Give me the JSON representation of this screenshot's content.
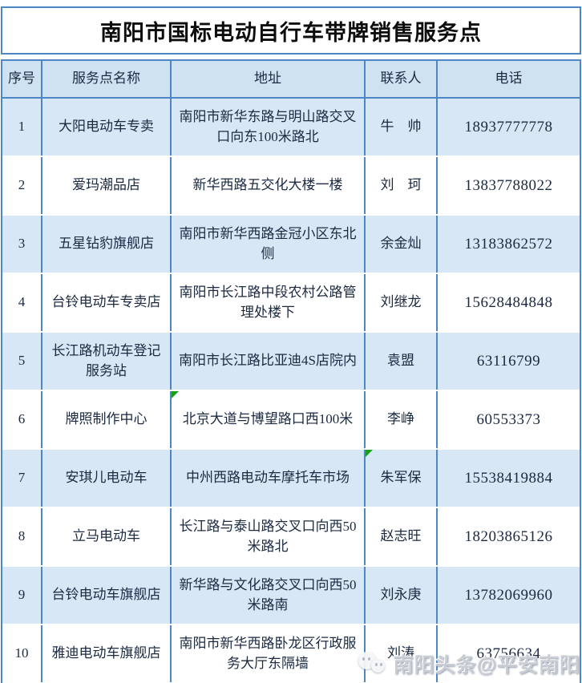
{
  "title": "南阳市国标电动自行车带牌销售服务点",
  "colors": {
    "border_blue": "#4d86c4",
    "header_bg": "#cfe2f2",
    "alt_row_bg": "#d7e7f6",
    "text": "#1b2a41",
    "marker_green": "#18a018",
    "watermark_gray": "#c9cdd4"
  },
  "table": {
    "headers": [
      "序号",
      "服务点名称",
      "地址",
      "联系人",
      "电话"
    ],
    "rows": [
      {
        "no": "1",
        "name": "大阳电动车专卖",
        "address": "南阳市新华东路与明山路交叉口向东100米路北",
        "contact": "牛　帅",
        "phone": "18937777778"
      },
      {
        "no": "2",
        "name": "爱玛潮品店",
        "address": "新华西路五交化大楼一楼",
        "contact": "刘　珂",
        "phone": "13837788022"
      },
      {
        "no": "3",
        "name": "五星钻豹旗舰店",
        "address": "南阳市新华西路金冠小区东北侧",
        "contact": "余金灿",
        "phone": "13183862572"
      },
      {
        "no": "4",
        "name": "台铃电动车专卖店",
        "address": "南阳市长江路中段农村公路管理处楼下",
        "contact": "刘继龙",
        "phone": "15628484848"
      },
      {
        "no": "5",
        "name": "长江路机动车登记服务站",
        "address": "南阳市长江路比亚迪4S店院内",
        "contact": "袁盟",
        "phone": "63116799"
      },
      {
        "no": "6",
        "name": "牌照制作中心",
        "address": "北京大道与博望路口西100米",
        "contact": "李峥",
        "phone": "60553373",
        "address_marker": true
      },
      {
        "no": "7",
        "name": "安琪儿电动车",
        "address": "中州西路电动车摩托车市场",
        "contact": "朱军保",
        "phone": "15538419884",
        "contact_marker": true
      },
      {
        "no": "8",
        "name": "立马电动车",
        "address": "长江路与泰山路交叉口向西50米路北",
        "contact": "赵志旺",
        "phone": "18203865126"
      },
      {
        "no": "9",
        "name": "台铃电动车旗舰店",
        "address": "新华路与文化路交叉口向西50米路南",
        "contact": "刘永庚",
        "phone": "13782069960"
      },
      {
        "no": "10",
        "name": "雅迪电动车旗舰店",
        "address": "南阳市新华西路卧龙区行政服务大厅东隔墙",
        "contact": "刘涛",
        "phone": "63756634"
      }
    ]
  },
  "watermark": {
    "text": "南阳头条@平安南阳",
    "icon": "chat-bubbles-icon"
  }
}
